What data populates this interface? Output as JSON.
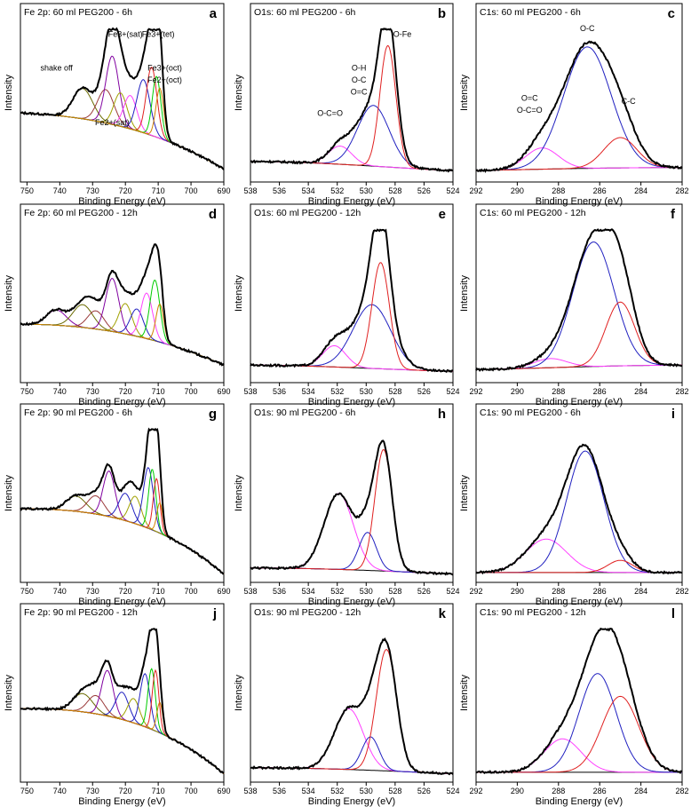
{
  "figure": {
    "panel_count": 12,
    "columns": 3,
    "rows": 4
  },
  "chart_data": [
    {
      "id": "a",
      "type": "line",
      "title": "Fe 2p: 60 ml PEG200 - 6h",
      "panel_letter": "a",
      "xlabel": "Binding Energy (eV)",
      "ylabel": "Intensity",
      "xlim": [
        752,
        690
      ],
      "xticks": [
        750,
        740,
        730,
        720,
        710,
        700,
        690
      ],
      "ylim": [
        0,
        1
      ],
      "envelope": {
        "bg": [
          0.42,
          0.4,
          0.32,
          0.05
        ],
        "peaks": [
          {
            "c": 733,
            "w": 3,
            "a": 0.2,
            "color": "#6a6a00"
          },
          {
            "c": 726,
            "w": 2.5,
            "a": 0.22,
            "color": "#9a3a3a"
          },
          {
            "c": 724,
            "w": 2,
            "a": 0.45,
            "color": "#8000a0"
          },
          {
            "c": 721.5,
            "w": 2,
            "a": 0.22,
            "color": "#a0a000"
          },
          {
            "c": 718.5,
            "w": 2,
            "a": 0.22,
            "color": "#ff40ff"
          },
          {
            "c": 714.5,
            "w": 2,
            "a": 0.35,
            "color": "#2020c0"
          },
          {
            "c": 712,
            "w": 1.6,
            "a": 0.45,
            "color": "#e02020"
          },
          {
            "c": 710.5,
            "w": 1.3,
            "a": 0.4,
            "color": "#00cc00"
          },
          {
            "c": 709.5,
            "w": 1.2,
            "a": 0.33,
            "color": "#d08000"
          }
        ]
      },
      "annotations": [
        {
          "text": "shake off",
          "x": 741,
          "y": 0.7
        },
        {
          "text": "Fe3+(sat)",
          "x": 720,
          "y": 0.92
        },
        {
          "text": "Fe3+(tet)",
          "x": 710,
          "y": 0.92
        },
        {
          "text": "Fe3+(oct)",
          "x": 708,
          "y": 0.7
        },
        {
          "text": "Fe2+(oct)",
          "x": 708,
          "y": 0.62
        },
        {
          "text": "Fe2+(sat)",
          "x": 724,
          "y": 0.34
        }
      ]
    },
    {
      "id": "b",
      "type": "line",
      "title": "O1s: 60 ml PEG200 - 6h",
      "panel_letter": "b",
      "xlabel": "Binding Energy (eV)",
      "ylabel": "Intensity",
      "xlim": [
        538,
        524
      ],
      "xticks": [
        538,
        536,
        534,
        532,
        530,
        528,
        526,
        524
      ],
      "ylim": [
        0,
        1
      ],
      "envelope": {
        "bg": [
          0.1,
          0.1,
          0.06,
          0.04
        ],
        "peaks": [
          {
            "c": 531.8,
            "w": 0.8,
            "a": 0.12,
            "color": "#ff40ff"
          },
          {
            "c": 529.5,
            "w": 1.1,
            "a": 0.4,
            "color": "#2020c0"
          },
          {
            "c": 528.5,
            "w": 0.55,
            "a": 0.8,
            "color": "#e02020"
          }
        ]
      },
      "annotations": [
        {
          "text": "O-C=O",
          "x": 532.5,
          "y": 0.4
        },
        {
          "text": "O-H",
          "x": 530.5,
          "y": 0.7
        },
        {
          "text": "O-C",
          "x": 530.5,
          "y": 0.62
        },
        {
          "text": "O=C",
          "x": 530.5,
          "y": 0.54
        },
        {
          "text": "O-Fe",
          "x": 527.5,
          "y": 0.92
        }
      ]
    },
    {
      "id": "c",
      "type": "line",
      "title": "C1s: 60 ml PEG200 - 6h",
      "panel_letter": "c",
      "xlabel": "Binding Energy (eV)",
      "ylabel": "Intensity",
      "xlim": [
        292,
        282
      ],
      "xticks": [
        292,
        290,
        288,
        286,
        284,
        282
      ],
      "ylim": [
        0,
        1
      ],
      "envelope": {
        "bg": [
          0.04,
          0.05,
          0.06,
          0.06
        ],
        "peaks": [
          {
            "c": 288.8,
            "w": 0.8,
            "a": 0.14,
            "color": "#ff40ff"
          },
          {
            "c": 286.6,
            "w": 1.15,
            "a": 0.8,
            "color": "#2020c0"
          },
          {
            "c": 285.0,
            "w": 0.8,
            "a": 0.2,
            "color": "#e02020"
          }
        ]
      },
      "annotations": [
        {
          "text": "O=C",
          "x": 289.4,
          "y": 0.5
        },
        {
          "text": "O-C=O",
          "x": 289.4,
          "y": 0.42
        },
        {
          "text": "O-C",
          "x": 286.6,
          "y": 0.96
        },
        {
          "text": "C-C",
          "x": 284.6,
          "y": 0.48
        }
      ]
    },
    {
      "id": "d",
      "type": "line",
      "title": "Fe 2p: 60 ml PEG200 - 12h",
      "panel_letter": "d",
      "xlabel": "Binding Energy (eV)",
      "ylabel": "Intensity",
      "xlim": [
        752,
        690
      ],
      "xticks": [
        750,
        740,
        730,
        720,
        710,
        700,
        690
      ],
      "ylim": [
        0,
        1
      ],
      "envelope": {
        "bg": [
          0.35,
          0.35,
          0.28,
          0.08
        ],
        "peaks": [
          {
            "c": 741,
            "w": 3,
            "a": 0.1,
            "color": "#8000a0"
          },
          {
            "c": 733,
            "w": 3,
            "a": 0.15,
            "color": "#6a6a00"
          },
          {
            "c": 729,
            "w": 2.5,
            "a": 0.12,
            "color": "#9a3a3a"
          },
          {
            "c": 724,
            "w": 2,
            "a": 0.35,
            "color": "#8000a0"
          },
          {
            "c": 720,
            "w": 2,
            "a": 0.2,
            "color": "#a0a000"
          },
          {
            "c": 716.5,
            "w": 2,
            "a": 0.18,
            "color": "#2020c0"
          },
          {
            "c": 713.5,
            "w": 1.8,
            "a": 0.3,
            "color": "#ff40ff"
          },
          {
            "c": 711,
            "w": 1.5,
            "a": 0.4,
            "color": "#00cc00"
          },
          {
            "c": 709.5,
            "w": 1.2,
            "a": 0.25,
            "color": "#d08000"
          }
        ]
      },
      "annotations": []
    },
    {
      "id": "e",
      "type": "line",
      "title": "O1s: 60 ml PEG200 - 12h",
      "panel_letter": "e",
      "xlabel": "Binding Energy (eV)",
      "ylabel": "Intensity",
      "xlim": [
        538,
        524
      ],
      "xticks": [
        538,
        536,
        534,
        532,
        530,
        528,
        526,
        524
      ],
      "ylim": [
        0,
        1
      ],
      "envelope": {
        "bg": [
          0.08,
          0.08,
          0.05,
          0.04
        ],
        "peaks": [
          {
            "c": 532.2,
            "w": 0.8,
            "a": 0.14,
            "color": "#ff40ff"
          },
          {
            "c": 529.6,
            "w": 1.3,
            "a": 0.42,
            "color": "#2020c0"
          },
          {
            "c": 529.0,
            "w": 0.6,
            "a": 0.7,
            "color": "#e02020"
          }
        ]
      },
      "annotations": []
    },
    {
      "id": "f",
      "type": "line",
      "title": "C1s: 60 ml PEG200 - 12h",
      "panel_letter": "f",
      "xlabel": "Binding Energy (eV)",
      "ylabel": "Intensity",
      "xlim": [
        292,
        282
      ],
      "xticks": [
        292,
        290,
        288,
        286,
        284,
        282
      ],
      "ylim": [
        0,
        1
      ],
      "envelope": {
        "bg": [
          0.05,
          0.06,
          0.08,
          0.08
        ],
        "peaks": [
          {
            "c": 288.4,
            "w": 0.8,
            "a": 0.06,
            "color": "#ff40ff"
          },
          {
            "c": 286.3,
            "w": 1.0,
            "a": 0.82,
            "color": "#2020c0"
          },
          {
            "c": 285.0,
            "w": 0.7,
            "a": 0.42,
            "color": "#e02020"
          }
        ]
      },
      "annotations": []
    },
    {
      "id": "g",
      "type": "line",
      "title": "Fe 2p: 90 ml PEG200 - 6h",
      "panel_letter": "g",
      "xlabel": "Binding Energy (eV)",
      "ylabel": "Intensity",
      "xlim": [
        752,
        690
      ],
      "xticks": [
        750,
        740,
        730,
        720,
        710,
        700,
        690
      ],
      "ylim": [
        0,
        1
      ],
      "envelope": {
        "bg": [
          0.45,
          0.45,
          0.4,
          0.02
        ],
        "peaks": [
          {
            "c": 735,
            "w": 3,
            "a": 0.1,
            "color": "#6a6a00"
          },
          {
            "c": 729,
            "w": 2.5,
            "a": 0.12,
            "color": "#9a3a3a"
          },
          {
            "c": 725,
            "w": 1.8,
            "a": 0.3,
            "color": "#8000a0"
          },
          {
            "c": 720,
            "w": 2,
            "a": 0.18,
            "color": "#2020c0"
          },
          {
            "c": 717,
            "w": 1.8,
            "a": 0.18,
            "color": "#a0a000"
          },
          {
            "c": 713,
            "w": 1.5,
            "a": 0.4,
            "color": "#2020c0"
          },
          {
            "c": 711.8,
            "w": 1.1,
            "a": 0.4,
            "color": "#00cc00"
          },
          {
            "c": 710.5,
            "w": 1.0,
            "a": 0.35,
            "color": "#e02020"
          },
          {
            "c": 709.5,
            "w": 0.9,
            "a": 0.2,
            "color": "#d08000"
          }
        ]
      },
      "annotations": []
    },
    {
      "id": "h",
      "type": "line",
      "title": "O1s: 90 ml PEG200 - 6h",
      "panel_letter": "h",
      "xlabel": "Binding Energy (eV)",
      "ylabel": "Intensity",
      "xlim": [
        538,
        524
      ],
      "xticks": [
        538,
        536,
        534,
        532,
        530,
        528,
        526,
        524
      ],
      "ylim": [
        0,
        1
      ],
      "envelope": {
        "bg": [
          0.06,
          0.06,
          0.04,
          0.02
        ],
        "peaks": [
          {
            "c": 531.9,
            "w": 1.0,
            "a": 0.5,
            "color": "#ff40ff"
          },
          {
            "c": 529.9,
            "w": 0.6,
            "a": 0.25,
            "color": "#2020c0"
          },
          {
            "c": 528.8,
            "w": 0.6,
            "a": 0.8,
            "color": "#e02020"
          }
        ]
      },
      "annotations": []
    },
    {
      "id": "i",
      "type": "line",
      "title": "C1s: 90 ml PEG200 - 6h",
      "panel_letter": "i",
      "xlabel": "Binding Energy (eV)",
      "ylabel": "Intensity",
      "xlim": [
        292,
        282
      ],
      "xticks": [
        292,
        290,
        288,
        286,
        284,
        282
      ],
      "ylim": [
        0,
        1
      ],
      "envelope": {
        "bg": [
          0.03,
          0.03,
          0.03,
          0.03
        ],
        "peaks": [
          {
            "c": 288.6,
            "w": 1.0,
            "a": 0.22,
            "color": "#ff40ff"
          },
          {
            "c": 286.7,
            "w": 0.9,
            "a": 0.8,
            "color": "#2020c0"
          },
          {
            "c": 285.0,
            "w": 0.6,
            "a": 0.08,
            "color": "#e02020"
          }
        ]
      },
      "annotations": []
    },
    {
      "id": "j",
      "type": "line",
      "title": "Fe 2p: 90 ml PEG200 - 12h",
      "panel_letter": "j",
      "xlabel": "Binding Energy (eV)",
      "ylabel": "Intensity",
      "xlim": [
        752,
        690
      ],
      "xticks": [
        750,
        740,
        730,
        720,
        710,
        700,
        690
      ],
      "ylim": [
        0,
        1
      ],
      "envelope": {
        "bg": [
          0.45,
          0.45,
          0.4,
          0.02
        ],
        "peaks": [
          {
            "c": 733,
            "w": 3,
            "a": 0.12,
            "color": "#6a6a00"
          },
          {
            "c": 729,
            "w": 2.5,
            "a": 0.12,
            "color": "#9a3a3a"
          },
          {
            "c": 725.5,
            "w": 1.8,
            "a": 0.3,
            "color": "#8000a0"
          },
          {
            "c": 721,
            "w": 2,
            "a": 0.18,
            "color": "#2020c0"
          },
          {
            "c": 717.5,
            "w": 1.8,
            "a": 0.16,
            "color": "#a0a000"
          },
          {
            "c": 714,
            "w": 1.5,
            "a": 0.35,
            "color": "#2020c0"
          },
          {
            "c": 712,
            "w": 1.1,
            "a": 0.4,
            "color": "#00cc00"
          },
          {
            "c": 710.8,
            "w": 1.0,
            "a": 0.4,
            "color": "#e02020"
          },
          {
            "c": 709.5,
            "w": 0.9,
            "a": 0.2,
            "color": "#d08000"
          }
        ]
      },
      "annotations": []
    },
    {
      "id": "k",
      "type": "line",
      "title": "O1s: 90 ml PEG200 - 12h",
      "panel_letter": "k",
      "xlabel": "Binding Energy (eV)",
      "ylabel": "Intensity",
      "xlim": [
        538,
        524
      ],
      "xticks": [
        538,
        536,
        534,
        532,
        530,
        528,
        526,
        524
      ],
      "ylim": [
        0,
        1
      ],
      "envelope": {
        "bg": [
          0.06,
          0.06,
          0.04,
          0.02
        ],
        "peaks": [
          {
            "c": 531.2,
            "w": 1.0,
            "a": 0.4,
            "color": "#ff40ff"
          },
          {
            "c": 529.7,
            "w": 0.6,
            "a": 0.22,
            "color": "#2020c0"
          },
          {
            "c": 528.6,
            "w": 0.7,
            "a": 0.8,
            "color": "#e02020"
          }
        ]
      },
      "annotations": []
    },
    {
      "id": "l",
      "type": "line",
      "title": "C1s: 90 ml PEG200 - 12h",
      "panel_letter": "l",
      "xlabel": "Binding Energy (eV)",
      "ylabel": "Intensity",
      "xlim": [
        292,
        282
      ],
      "xticks": [
        292,
        290,
        288,
        286,
        284,
        282
      ],
      "ylim": [
        0,
        1
      ],
      "envelope": {
        "bg": [
          0.03,
          0.03,
          0.03,
          0.03
        ],
        "peaks": [
          {
            "c": 287.8,
            "w": 0.9,
            "a": 0.22,
            "color": "#ff40ff"
          },
          {
            "c": 286.1,
            "w": 0.9,
            "a": 0.65,
            "color": "#2020c0"
          },
          {
            "c": 285.0,
            "w": 0.9,
            "a": 0.5,
            "color": "#e02020"
          }
        ]
      },
      "annotations": []
    }
  ]
}
